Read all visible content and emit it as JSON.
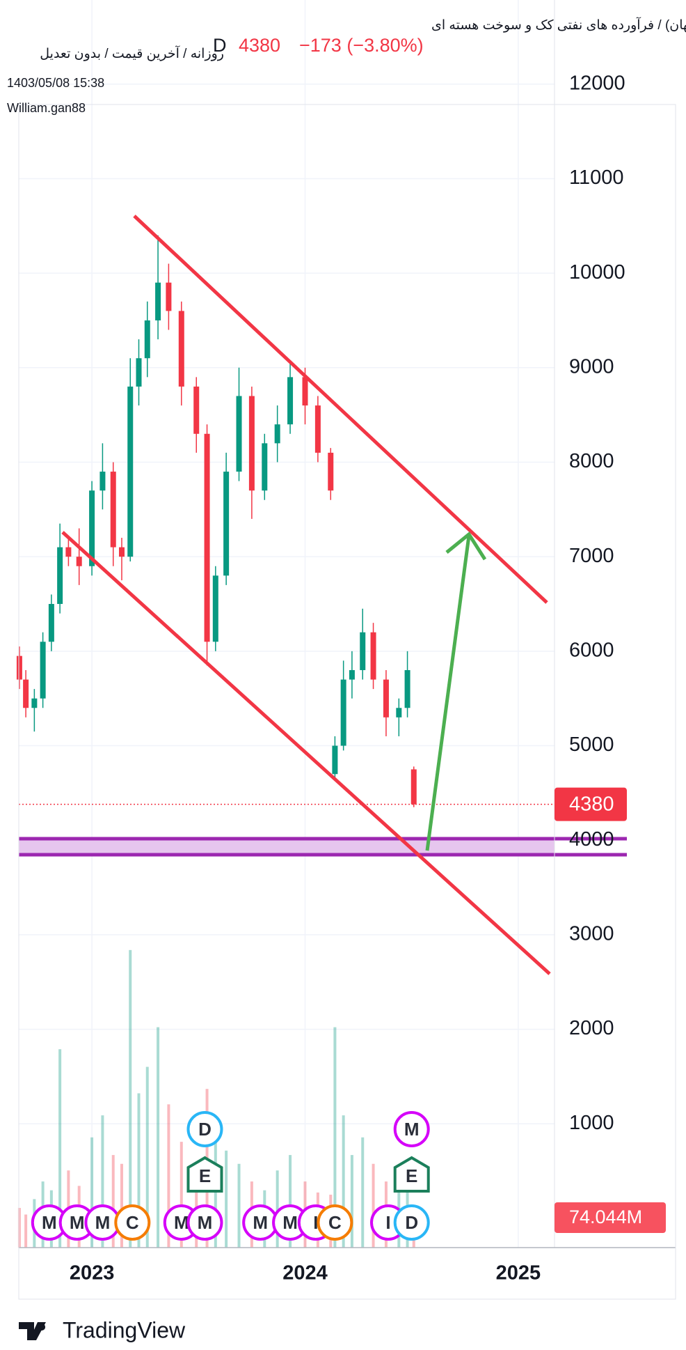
{
  "header": {
    "title": "شپنا (پالایش نفت اصفهان) / فرآورده های نفتی کک و سوخت هسته ای",
    "subtitle": "روزانه / آخرین قیمت / بدون تعدیل",
    "interval": "D",
    "last_price": "4380",
    "change": "−173 (−3.80%)",
    "datetime": "1403/05/08 15:38",
    "author": "William.gan88"
  },
  "chart_data": {
    "type": "candlestick",
    "up_color": "#089981",
    "down_color": "#f23645",
    "x": [
      2022.66,
      2022.69,
      2022.73,
      2022.77,
      2022.81,
      2022.85,
      2022.89,
      2022.94,
      2023.0,
      2023.05,
      2023.1,
      2023.14,
      2023.18,
      2023.22,
      2023.26,
      2023.31,
      2023.36,
      2023.42,
      2023.49,
      2023.54,
      2023.58,
      2023.63,
      2023.69,
      2023.75,
      2023.81,
      2023.87,
      2023.93,
      2024.0,
      2024.06,
      2024.12,
      2024.14,
      2024.18,
      2024.22,
      2024.27,
      2024.32,
      2024.38,
      2024.44,
      2024.48,
      2024.51
    ],
    "open": [
      5950,
      5700,
      5400,
      5500,
      6100,
      6500,
      7100,
      7000,
      6900,
      7700,
      7900,
      7100,
      7000,
      8800,
      9100,
      9500,
      9900,
      9600,
      8800,
      8300,
      6100,
      6800,
      7900,
      8700,
      7700,
      8200,
      8400,
      8900,
      8600,
      8100,
      4700,
      5000,
      5700,
      5800,
      6200,
      5700,
      5300,
      5400,
      4750
    ],
    "high": [
      6050,
      5800,
      5600,
      6200,
      6600,
      7350,
      7200,
      7300,
      7800,
      8200,
      8000,
      7200,
      9100,
      9300,
      9700,
      10400,
      10100,
      9700,
      8900,
      8400,
      6900,
      8100,
      9000,
      8800,
      8300,
      8600,
      9050,
      9000,
      8700,
      8150,
      5100,
      5900,
      6000,
      6450,
      6300,
      5800,
      5500,
      6000,
      4780
    ],
    "low": [
      5600,
      5300,
      5150,
      5400,
      6000,
      6400,
      6900,
      6700,
      6800,
      7500,
      6900,
      6750,
      6950,
      8600,
      8900,
      9300,
      9400,
      8600,
      8100,
      5850,
      6000,
      6700,
      7800,
      7400,
      7600,
      8000,
      8300,
      8400,
      8000,
      7600,
      4650,
      4950,
      5500,
      5700,
      5600,
      5100,
      5100,
      5300,
      4350
    ],
    "close": [
      5700,
      5400,
      5500,
      6100,
      6500,
      7100,
      7000,
      6900,
      7700,
      7900,
      7100,
      7000,
      8800,
      9100,
      9500,
      9900,
      9600,
      8800,
      8300,
      6100,
      6800,
      7900,
      8700,
      7700,
      8200,
      8400,
      8900,
      8600,
      8100,
      7700,
      5000,
      5700,
      5800,
      6200,
      5700,
      5300,
      5400,
      5800,
      4380
    ],
    "volume": [
      180,
      150,
      220,
      300,
      260,
      900,
      350,
      280,
      500,
      600,
      420,
      380,
      1350,
      700,
      820,
      1000,
      650,
      480,
      330,
      720,
      560,
      440,
      380,
      300,
      260,
      350,
      420,
      300,
      250,
      240,
      1000,
      600,
      420,
      500,
      380,
      300,
      260,
      330,
      74.044
    ],
    "volume_label": "74.044M",
    "vlim": [
      0,
      1400
    ],
    "last": {
      "value": 4380,
      "label": "4380"
    },
    "xlim": [
      2022.657,
      2025.17
    ],
    "xticks": [
      2023,
      2024,
      2025
    ],
    "ylim": [
      -310,
      12890
    ],
    "yticks": [
      1000,
      2000,
      3000,
      4000,
      5000,
      6000,
      7000,
      8000,
      9000,
      10000,
      11000,
      12000
    ],
    "grid": true,
    "events": [
      {
        "label": "M",
        "t": 2022.8
      },
      {
        "label": "M",
        "t": 2022.93
      },
      {
        "label": "M",
        "t": 2023.05
      },
      {
        "label": "C",
        "t": 2023.19
      },
      {
        "label": "M",
        "t": 2023.42
      },
      {
        "label": "M",
        "t": 2023.53
      },
      {
        "label": "E",
        "t": 2023.53
      },
      {
        "label": "D",
        "t": 2023.53
      },
      {
        "label": "M",
        "t": 2023.79
      },
      {
        "label": "M",
        "t": 2023.93
      },
      {
        "label": "I",
        "t": 2024.05
      },
      {
        "label": "C",
        "t": 2024.14
      },
      {
        "label": "I",
        "t": 2024.39
      },
      {
        "label": "D",
        "t": 2024.5
      },
      {
        "label": "E",
        "t": 2024.5
      },
      {
        "label": "M",
        "t": 2024.5
      }
    ]
  },
  "footer": {
    "brand": "TradingView"
  }
}
